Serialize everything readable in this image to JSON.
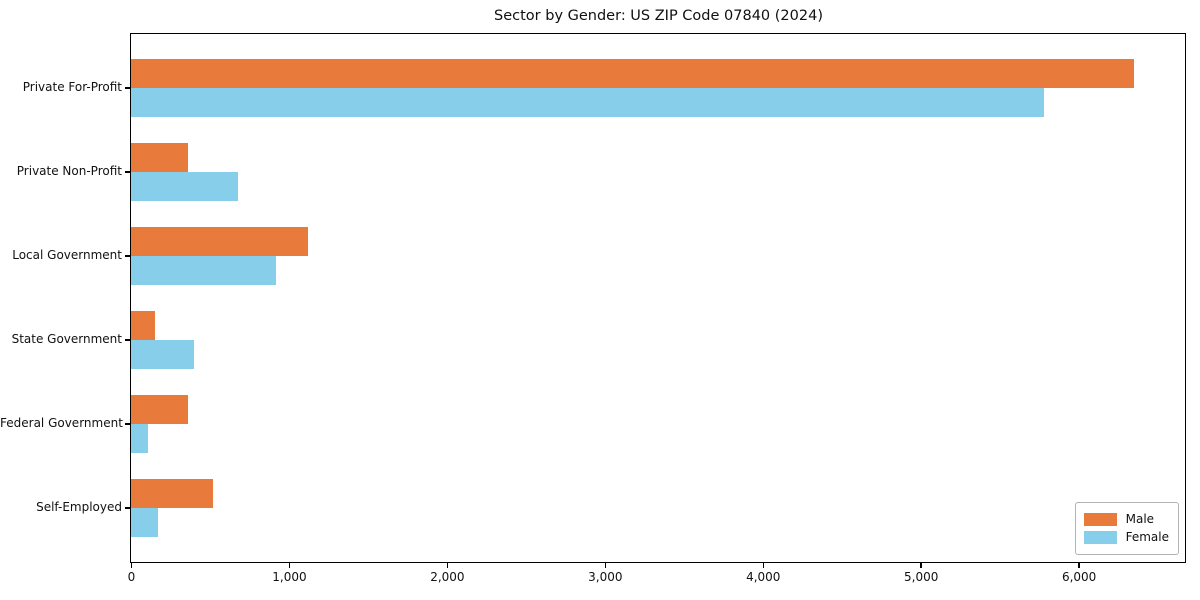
{
  "title": "Sector by Gender: US ZIP Code 07840 (2024)",
  "colors": {
    "male": "#e87a3b",
    "female": "#87ceeb",
    "axis": "#000000",
    "legend_border": "#b3b3b3",
    "background": "#ffffff"
  },
  "legend": {
    "position": "lower right",
    "entries": [
      {
        "label": "Male",
        "color": "#e87a3b"
      },
      {
        "label": "Female",
        "color": "#87ceeb"
      }
    ]
  },
  "chart_data": {
    "type": "bar",
    "orientation": "horizontal",
    "title": "Sector by Gender: US ZIP Code 07840 (2024)",
    "categories": [
      "Private For-Profit",
      "Private Non-Profit",
      "Local Government",
      "State Government",
      "Federal Government",
      "Self-Employed"
    ],
    "series": [
      {
        "name": "Male",
        "color": "#e87a3b",
        "values": [
          6350,
          360,
          1120,
          150,
          360,
          520
        ]
      },
      {
        "name": "Female",
        "color": "#87ceeb",
        "values": [
          5780,
          680,
          920,
          400,
          110,
          170
        ]
      }
    ],
    "xlabel": "",
    "ylabel": "",
    "xlim": [
      0,
      6667
    ],
    "xticks": [
      0,
      1000,
      2000,
      3000,
      4000,
      5000,
      6000
    ],
    "xtick_labels": [
      "0",
      "1,000",
      "2,000",
      "3,000",
      "4,000",
      "5,000",
      "6,000"
    ],
    "grid": false,
    "legend_position": "lower right"
  }
}
